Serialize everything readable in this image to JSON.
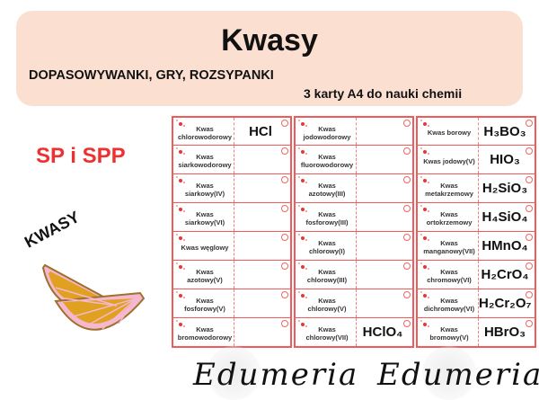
{
  "header": {
    "title": "Kwasy",
    "subtitle": "DOPASOWYWANKI, GRY, ROZSYPANKI",
    "cards_count": "3 karty A4  do nauki chemii",
    "background_color": "#fbe0d2"
  },
  "level_label": "SP i SPP",
  "topic_label": "KWASY",
  "watermark": "Edumeria",
  "sheets": [
    {
      "rows": [
        {
          "name": "Kwas chlorowodorowy",
          "formula": "HCl"
        },
        {
          "name": "Kwas siarkowodorowy",
          "formula": ""
        },
        {
          "name": "Kwas siarkowy(IV)",
          "formula": ""
        },
        {
          "name": "Kwas siarkowy(VI)",
          "formula": ""
        },
        {
          "name": "Kwas węglowy",
          "formula": ""
        },
        {
          "name": "Kwas  azotowy(V)",
          "formula": ""
        },
        {
          "name": "Kwas fosforowy(V)",
          "formula": ""
        },
        {
          "name": "Kwas bromowodorowy",
          "formula": ""
        }
      ]
    },
    {
      "rows": [
        {
          "name": "Kwas jodowodorowy",
          "formula": ""
        },
        {
          "name": "Kwas fluorowodorowy",
          "formula": ""
        },
        {
          "name": "Kwas azotowy(III)",
          "formula": ""
        },
        {
          "name": "Kwas fosforowy(III)",
          "formula": ""
        },
        {
          "name": "Kwas  chlorowy(I)",
          "formula": ""
        },
        {
          "name": "Kwas chlorowy(III)",
          "formula": ""
        },
        {
          "name": "Kwas chlorowy(V)",
          "formula": ""
        },
        {
          "name": "Kwas chlorowy(VII)",
          "formula": "HClO₄"
        }
      ]
    },
    {
      "rows": [
        {
          "name": "Kwas borowy",
          "formula": "H₃BO₃"
        },
        {
          "name": "Kwas jodowy(V)",
          "formula": "HIO₃"
        },
        {
          "name": "Kwas metakrzemowy",
          "formula": "H₂SiO₃"
        },
        {
          "name": "Kwas ortokrzemowy",
          "formula": "H₄SiO₄"
        },
        {
          "name": "Kwas  manganowy(VII)",
          "formula": "HMnO₄"
        },
        {
          "name": "Kwas chromowy(VI)",
          "formula": "H₂CrO₄"
        },
        {
          "name": "Kwas dichromowy(VI)",
          "formula": "H₂Cr₂O₇"
        },
        {
          "name": "Kwas bromowy(V)",
          "formula": "HBrO₃"
        }
      ]
    }
  ],
  "colors": {
    "accent_red": "#f03030",
    "card_border": "#f05a5a"
  }
}
